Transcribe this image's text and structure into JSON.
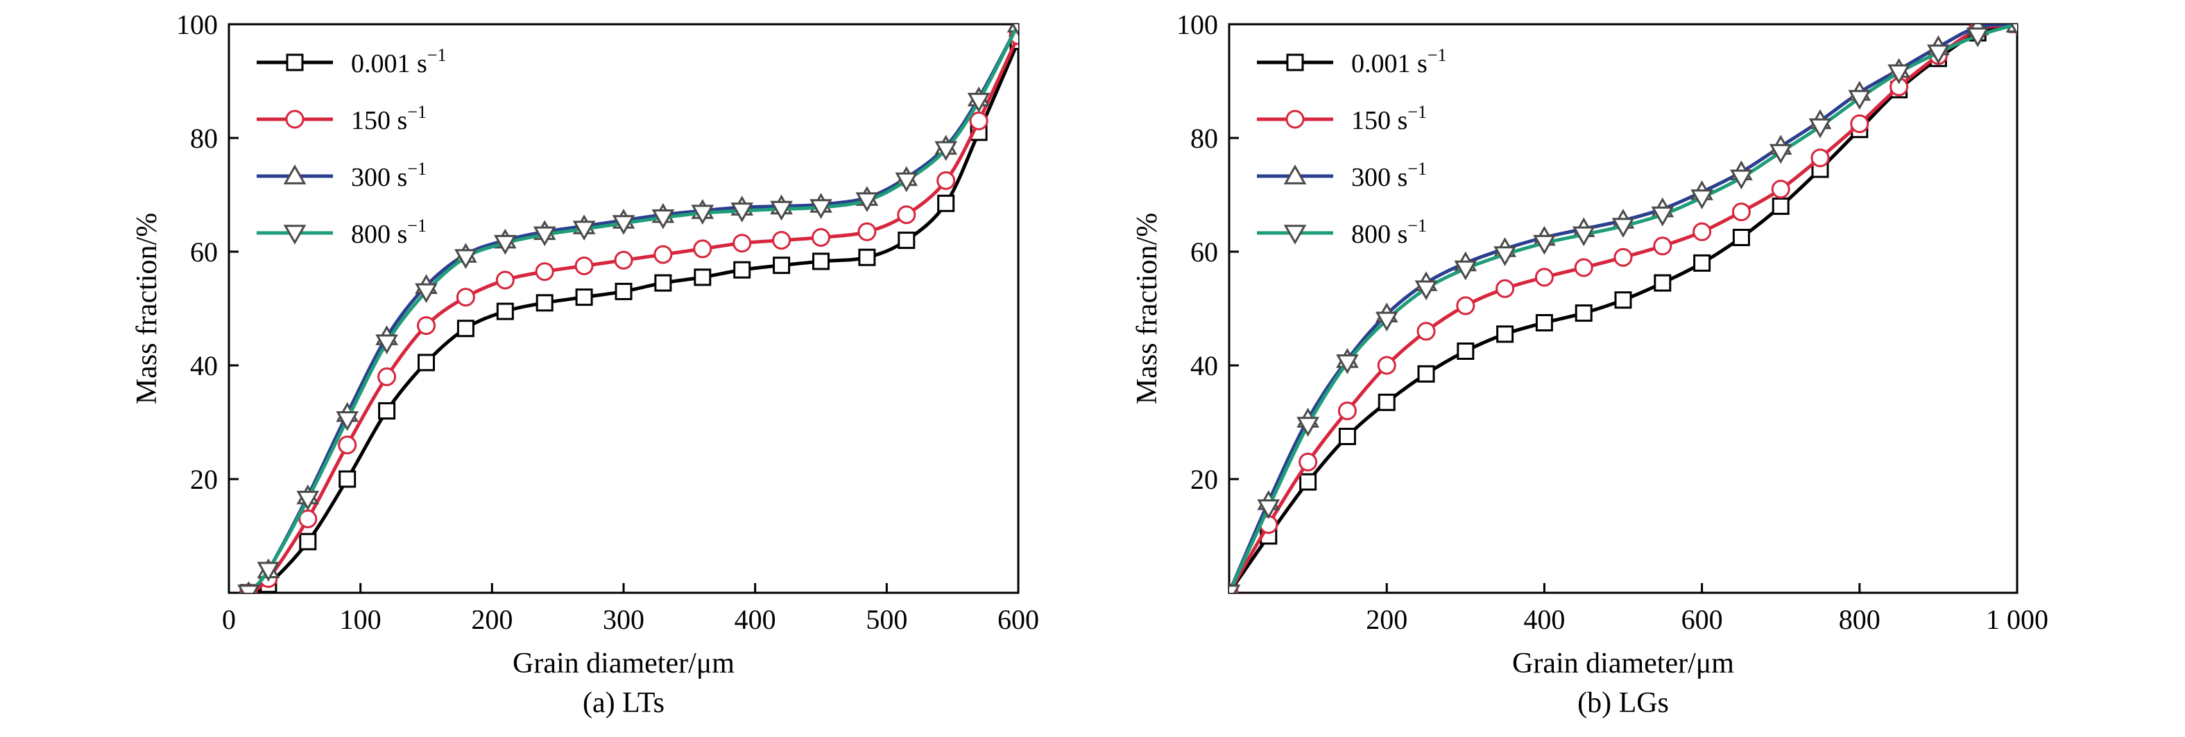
{
  "figure": {
    "background": "#ffffff",
    "marker_fill": "#ffffff",
    "marker_stroke": "#000000"
  },
  "chart_data": [
    {
      "type": "line",
      "panel_label": "(a) LTs",
      "xlabel": "Grain diameter/μm",
      "ylabel": "Mass fraction/%",
      "xlim": [
        0,
        600
      ],
      "ylim": [
        0,
        100
      ],
      "x_ticks": [
        0,
        100,
        200,
        300,
        400,
        500,
        600
      ],
      "x_tick_labels": [
        "0",
        "100",
        "200",
        "300",
        "400",
        "500",
        "600"
      ],
      "y_ticks": [
        20,
        40,
        60,
        80,
        100
      ],
      "y_tick_labels": [
        "20",
        "40",
        "60",
        "80",
        "100"
      ],
      "grid": false,
      "legend_position": "top-left",
      "series": [
        {
          "name": "0.001 s",
          "superscript": "−1",
          "color": "#000000",
          "marker": "square",
          "x": [
            15,
            30,
            60,
            90,
            120,
            150,
            180,
            210,
            240,
            270,
            300,
            330,
            360,
            390,
            420,
            450,
            485,
            515,
            545,
            570,
            600
          ],
          "y": [
            0,
            1.5,
            9,
            20,
            32,
            40.5,
            46.5,
            49.5,
            51,
            52,
            53,
            54.5,
            55.5,
            56.8,
            57.6,
            58.3,
            59,
            62,
            68.5,
            81,
            97
          ]
        },
        {
          "name": "150 s",
          "superscript": "−1",
          "color": "#d7263d",
          "marker": "circle",
          "x": [
            15,
            30,
            60,
            90,
            120,
            150,
            180,
            210,
            240,
            270,
            300,
            330,
            360,
            390,
            420,
            450,
            485,
            515,
            545,
            570,
            600
          ],
          "y": [
            0,
            2.5,
            13,
            26,
            38,
            47,
            52,
            55,
            56.5,
            57.5,
            58.5,
            59.5,
            60.5,
            61.5,
            62,
            62.5,
            63.5,
            66.5,
            72.5,
            83,
            98
          ]
        },
        {
          "name": "300 s",
          "superscript": "−1",
          "color": "#2a3f8f",
          "marker": "triangle-up",
          "x": [
            15,
            30,
            60,
            90,
            120,
            150,
            180,
            210,
            240,
            270,
            300,
            330,
            360,
            390,
            420,
            450,
            485,
            515,
            545,
            570,
            600
          ],
          "y": [
            0,
            4,
            17,
            31.5,
            45,
            54,
            59.5,
            62,
            63.5,
            64.5,
            65.5,
            66.5,
            67.2,
            67.8,
            68,
            68.3,
            69.5,
            73,
            78.5,
            87,
            100
          ]
        },
        {
          "name": "800 s",
          "superscript": "−1",
          "color": "#1f9d7a",
          "marker": "triangle-down",
          "x": [
            15,
            30,
            60,
            90,
            120,
            150,
            180,
            210,
            240,
            270,
            300,
            330,
            360,
            390,
            420,
            450,
            485,
            515,
            545,
            570,
            600
          ],
          "y": [
            0,
            4,
            16.5,
            30.5,
            44,
            53,
            59,
            61.5,
            63,
            64,
            65,
            66,
            66.8,
            67.2,
            67.5,
            67.8,
            69,
            72.5,
            78,
            86.5,
            100
          ]
        }
      ]
    },
    {
      "type": "line",
      "panel_label": "(b) LGs",
      "xlabel": "Grain diameter/μm",
      "ylabel": "Mass fraction/%",
      "xlim": [
        0,
        1000
      ],
      "ylim": [
        0,
        100
      ],
      "x_ticks": [
        200,
        400,
        600,
        800,
        1000
      ],
      "x_tick_labels": [
        "200",
        "400",
        "600",
        "800",
        "1 000"
      ],
      "y_ticks": [
        20,
        40,
        60,
        80,
        100
      ],
      "y_tick_labels": [
        "20",
        "40",
        "60",
        "80",
        "100"
      ],
      "grid": false,
      "legend_position": "top-left",
      "series": [
        {
          "name": "0.001 s",
          "superscript": "−1",
          "color": "#000000",
          "marker": "square",
          "x": [
            0,
            50,
            100,
            150,
            200,
            250,
            300,
            350,
            400,
            450,
            500,
            550,
            600,
            650,
            700,
            750,
            800,
            850,
            900,
            950,
            1000
          ],
          "y": [
            0,
            10,
            19.5,
            27.5,
            33.5,
            38.5,
            42.5,
            45.5,
            47.5,
            49.2,
            51.5,
            54.5,
            58,
            62.5,
            68,
            74.5,
            81.5,
            88.5,
            94,
            98.5,
            100
          ]
        },
        {
          "name": "150 s",
          "superscript": "−1",
          "color": "#d7263d",
          "marker": "circle",
          "x": [
            0,
            50,
            100,
            150,
            200,
            250,
            300,
            350,
            400,
            450,
            500,
            550,
            600,
            650,
            700,
            750,
            800,
            850,
            900,
            950,
            1000
          ],
          "y": [
            0,
            12,
            23,
            32,
            40,
            46,
            50.5,
            53.5,
            55.5,
            57.2,
            59,
            61,
            63.5,
            67,
            71,
            76.5,
            82.5,
            89,
            94.5,
            99,
            100
          ]
        },
        {
          "name": "300 s",
          "superscript": "−1",
          "color": "#2a3f8f",
          "marker": "triangle-up",
          "x": [
            0,
            50,
            100,
            150,
            200,
            250,
            300,
            350,
            400,
            450,
            500,
            550,
            600,
            650,
            700,
            750,
            800,
            850,
            900,
            950,
            1000
          ],
          "y": [
            0,
            16,
            30.5,
            41,
            49,
            54.5,
            58,
            60.5,
            62.5,
            64,
            65.5,
            67.5,
            70.5,
            74,
            78.5,
            83,
            88,
            92,
            96,
            99.5,
            100
          ]
        },
        {
          "name": "800 s",
          "superscript": "−1",
          "color": "#1f9d7a",
          "marker": "triangle-down",
          "x": [
            0,
            50,
            100,
            150,
            200,
            250,
            300,
            350,
            400,
            450,
            500,
            550,
            600,
            650,
            700,
            750,
            800,
            850,
            900,
            950,
            1000
          ],
          "y": [
            0,
            15,
            29.5,
            40.5,
            48,
            53.5,
            57,
            59.5,
            61.5,
            63,
            64.5,
            66.5,
            69.5,
            73,
            77.5,
            82,
            87,
            91.5,
            95,
            98,
            100
          ]
        }
      ]
    }
  ]
}
